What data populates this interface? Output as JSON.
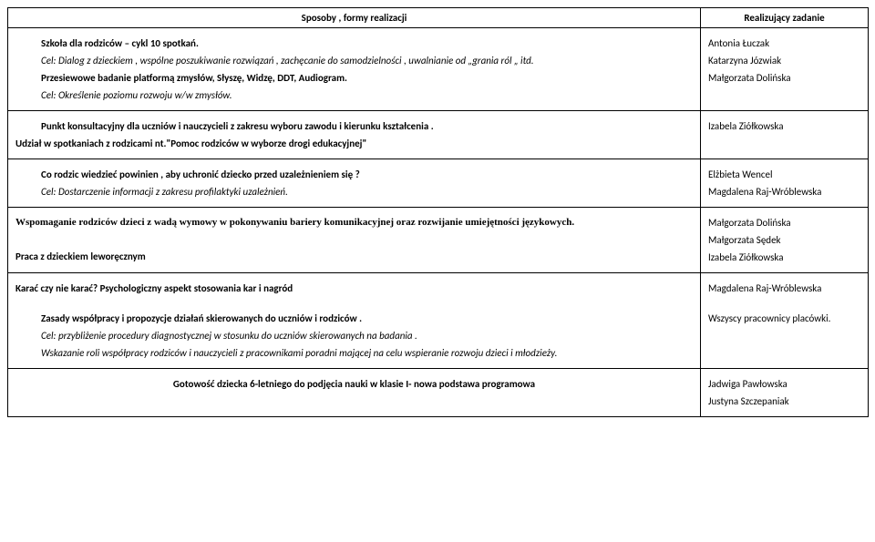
{
  "header": {
    "left": "Sposoby , formy realizacji",
    "right": "Realizujący zadanie"
  },
  "rows": [
    {
      "left": [
        {
          "text": "Szkoła dla rodziców – cykl 10 spotkań.",
          "bold": true,
          "indent": true
        },
        {
          "text": "Cel: Dialog z dzieckiem , wspólne poszukiwanie  rozwiązań , zachęcanie do samodzielności , uwalnianie od „grania ról „ itd.",
          "italic": true,
          "indent": true
        },
        {
          "text": "Przesiewowe badanie platformą zmysłów, Słyszę, Widzę, DDT, Audiogram.",
          "bold": true,
          "indent": true
        },
        {
          "text": "Cel: Określenie poziomu rozwoju w/w zmysłów.",
          "italic": true,
          "indent": true
        }
      ],
      "right": [
        "Antonia Łuczak",
        "Katarzyna Józwiak",
        "Małgorzata Dolińska"
      ]
    },
    {
      "left": [
        {
          "text": "Punkt konsultacyjny dla uczniów i nauczycieli z zakresu wyboru zawodu i kierunku kształcenia .",
          "bold": true,
          "indent": true
        },
        {
          "text": "Udział w spotkaniach z rodzicami nt.\"Pomoc rodziców w wyborze  drogi edukacyjnej\"",
          "bold": true
        }
      ],
      "right": [
        "Izabela Ziółkowska"
      ]
    },
    {
      "left": [
        {
          "text": "Co rodzic  wiedzieć powinien , aby uchronić dziecko przed uzależnieniem się ?",
          "bold": true,
          "indent": true
        },
        {
          "text": "Cel: Dostarczenie informacji z zakresu profilaktyki uzależnień.",
          "italic": true,
          "indent": true
        }
      ],
      "right": [
        "Elżbieta Wencel",
        "Magdalena Raj-Wróblewska"
      ]
    },
    {
      "left": [
        {
          "text": "Wspomaganie rodziców dzieci z wadą wymowy w pokonywaniu bariery komunikacyjnej oraz  rozwijanie umiejętności językowych.",
          "bold": true,
          "serif": true
        },
        {
          "text": "",
          "spacer": true
        },
        {
          "text": "Praca  z dzieckiem leworęcznym",
          "bold": true
        }
      ],
      "right": [
        "Małgorzata Dolińska",
        "Małgorzata Sędek",
        "Izabela Ziółkowska"
      ]
    },
    {
      "left": [
        {
          "text": "Karać czy nie karać? Psychologiczny aspekt stosowania kar i nagród",
          "bold": true
        }
      ],
      "right": [
        "Magdalena Raj-Wróblewska"
      ],
      "noBottom": true
    },
    {
      "left": [
        {
          "text": "Zasady  współpracy i propozycje działań skierowanych do uczniów i rodziców .",
          "bold": true,
          "indent": true
        },
        {
          "text": "Cel: przybliżenie procedury diagnostycznej w stosunku do uczniów skierowanych na badania .",
          "italic": true,
          "indent": true
        },
        {
          "text": "Wskazanie roli współpracy rodziców i nauczycieli z pracownikami poradni mającej na celu wspieranie rozwoju dzieci i młodzieży.",
          "italic": true,
          "indent": true
        }
      ],
      "right": [
        "Wszyscy pracownicy placówki."
      ],
      "noTop": true
    },
    {
      "left": [
        {
          "text": "Gotowość dziecka 6-letniego do podjęcia nauki w klasie I- nowa podstawa programowa",
          "bold": true,
          "center": true
        }
      ],
      "right": [
        "Jadwiga Pawłowska",
        "Justyna Szczepaniak"
      ]
    }
  ]
}
